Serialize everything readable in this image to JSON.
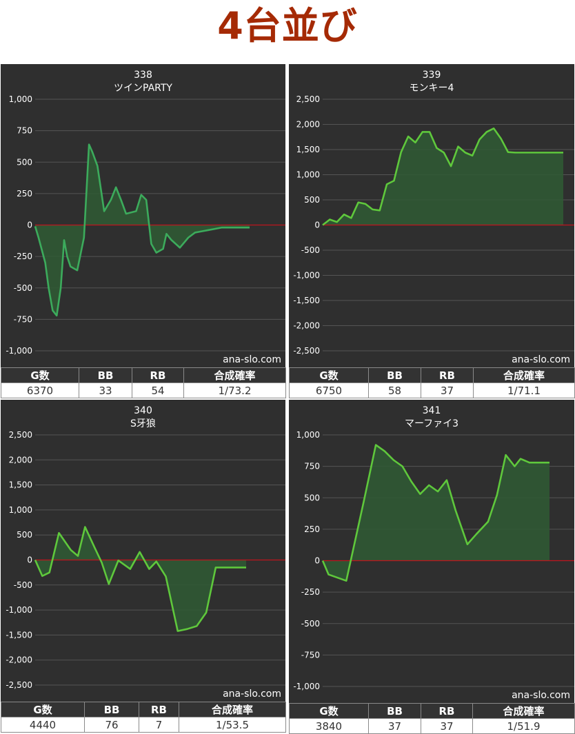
{
  "page_title": "4台並び",
  "watermark": "ana-slo.com",
  "table_headers": [
    "G数",
    "BB",
    "RB",
    "合成確率"
  ],
  "colors": {
    "panel_bg": "#2f2f2f",
    "grid": "#555555",
    "zero_line": "#c0141e",
    "line_dark": "#3cab5c",
    "line_bright": "#5fc83c",
    "fill": "#2f5a34",
    "title": "#a52a05"
  },
  "chart_data": [
    {
      "type": "area",
      "machine_number": "338",
      "machine_name": "ツインPARTY",
      "ylim": [
        -1000,
        1000
      ],
      "yticks": [
        1000,
        750,
        500,
        250,
        0,
        -250,
        -500,
        -750,
        -1000
      ],
      "ytick_labels": [
        "1,000",
        "750",
        "500",
        "250",
        "0",
        "-250",
        "-500",
        "-750",
        "-1,000"
      ],
      "x": [
        0,
        100,
        200,
        300,
        400,
        520,
        640,
        760,
        860,
        950,
        1050,
        1250,
        1450,
        1600,
        1700,
        1850,
        2050,
        2250,
        2400,
        2550,
        2700,
        2850,
        3000,
        3150,
        3300,
        3450,
        3600,
        3800,
        3900,
        4050,
        4300,
        4550,
        4750,
        4950,
        5150,
        5350,
        5550,
        5800,
        6100,
        6370
      ],
      "y": [
        -10,
        -100,
        -200,
        -300,
        -500,
        -680,
        -720,
        -500,
        -120,
        -250,
        -330,
        -360,
        -100,
        640,
        580,
        470,
        110,
        200,
        300,
        200,
        90,
        100,
        110,
        240,
        200,
        -150,
        -220,
        -190,
        -70,
        -120,
        -180,
        -100,
        -60,
        -50,
        -40,
        -30,
        -20,
        -20,
        -20,
        -20
      ],
      "bar_area_note": "",
      "stats": {
        "games": "6370",
        "bb": "33",
        "rb": "54",
        "combined": "1/73.2"
      }
    },
    {
      "type": "area",
      "machine_number": "339",
      "machine_name": "モンキー4",
      "ylim": [
        -2500,
        2500
      ],
      "yticks": [
        2500,
        2000,
        1500,
        1000,
        500,
        0,
        -500,
        -1000,
        -1500,
        -2000,
        -2500
      ],
      "ytick_labels": [
        "2,500",
        "2,000",
        "1,500",
        "1,000",
        "500",
        "0",
        "-500",
        "-1,000",
        "-1,500",
        "-2,000",
        "-2,500"
      ],
      "x": [
        0,
        200,
        400,
        600,
        800,
        1000,
        1200,
        1400,
        1600,
        1800,
        2000,
        2200,
        2400,
        2600,
        2800,
        3000,
        3200,
        3400,
        3600,
        3800,
        4000,
        4200,
        4400,
        4600,
        4800,
        5000,
        5200,
        5400,
        5600,
        5800,
        6000,
        6200,
        6400,
        6600,
        6750
      ],
      "y": [
        0,
        110,
        60,
        210,
        140,
        450,
        420,
        310,
        290,
        810,
        880,
        1450,
        1760,
        1640,
        1850,
        1850,
        1530,
        1440,
        1170,
        1560,
        1440,
        1380,
        1700,
        1850,
        1920,
        1720,
        1450,
        1440,
        1440,
        1440,
        1440,
        1440,
        1440,
        1440,
        1440
      ],
      "stats": {
        "games": "6750",
        "bb": "58",
        "rb": "37",
        "combined": "1/71.1"
      }
    },
    {
      "type": "area",
      "machine_number": "340",
      "machine_name": "S牙狼",
      "ylim": [
        -2500,
        2500
      ],
      "yticks": [
        2500,
        2000,
        1500,
        1000,
        500,
        0,
        -500,
        -1000,
        -1500,
        -2000,
        -2500
      ],
      "ytick_labels": [
        "2,500",
        "2,000",
        "1,500",
        "1,000",
        "500",
        "0",
        "-500",
        "-1,000",
        "-1,500",
        "-2,000",
        "-2,500"
      ],
      "x": [
        0,
        150,
        300,
        500,
        750,
        900,
        1050,
        1250,
        1400,
        1550,
        1750,
        2000,
        2200,
        2400,
        2550,
        2750,
        3000,
        3200,
        3400,
        3600,
        3800,
        4000,
        4200,
        4440
      ],
      "y": [
        0,
        -320,
        -250,
        540,
        200,
        80,
        660,
        250,
        -50,
        -480,
        -10,
        -180,
        160,
        -180,
        -30,
        -330,
        -1420,
        -1380,
        -1320,
        -1050,
        -150,
        -150,
        -150,
        -150
      ],
      "stats": {
        "games": "4440",
        "bb": "76",
        "rb": "7",
        "combined": "1/53.5"
      }
    },
    {
      "type": "area",
      "machine_number": "341",
      "machine_name": "マーファイ3",
      "ylim": [
        -1000,
        1000
      ],
      "yticks": [
        1000,
        750,
        500,
        250,
        0,
        -250,
        -500,
        -750,
        -1000
      ],
      "ytick_labels": [
        "1,000",
        "750",
        "500",
        "250",
        "0",
        "-250",
        "-500",
        "-750",
        "-1,000"
      ],
      "x": [
        0,
        100,
        400,
        700,
        900,
        1050,
        1200,
        1350,
        1500,
        1650,
        1800,
        1950,
        2100,
        2250,
        2450,
        2600,
        2800,
        2950,
        3100,
        3250,
        3350,
        3500,
        3640,
        3800,
        3840
      ],
      "y": [
        0,
        -110,
        -160,
        480,
        920,
        870,
        800,
        750,
        630,
        530,
        600,
        550,
        640,
        400,
        130,
        210,
        310,
        520,
        840,
        750,
        810,
        780,
        780,
        780,
        780
      ],
      "stats": {
        "games": "3840",
        "bb": "37",
        "rb": "37",
        "combined": "1/51.9"
      }
    }
  ]
}
